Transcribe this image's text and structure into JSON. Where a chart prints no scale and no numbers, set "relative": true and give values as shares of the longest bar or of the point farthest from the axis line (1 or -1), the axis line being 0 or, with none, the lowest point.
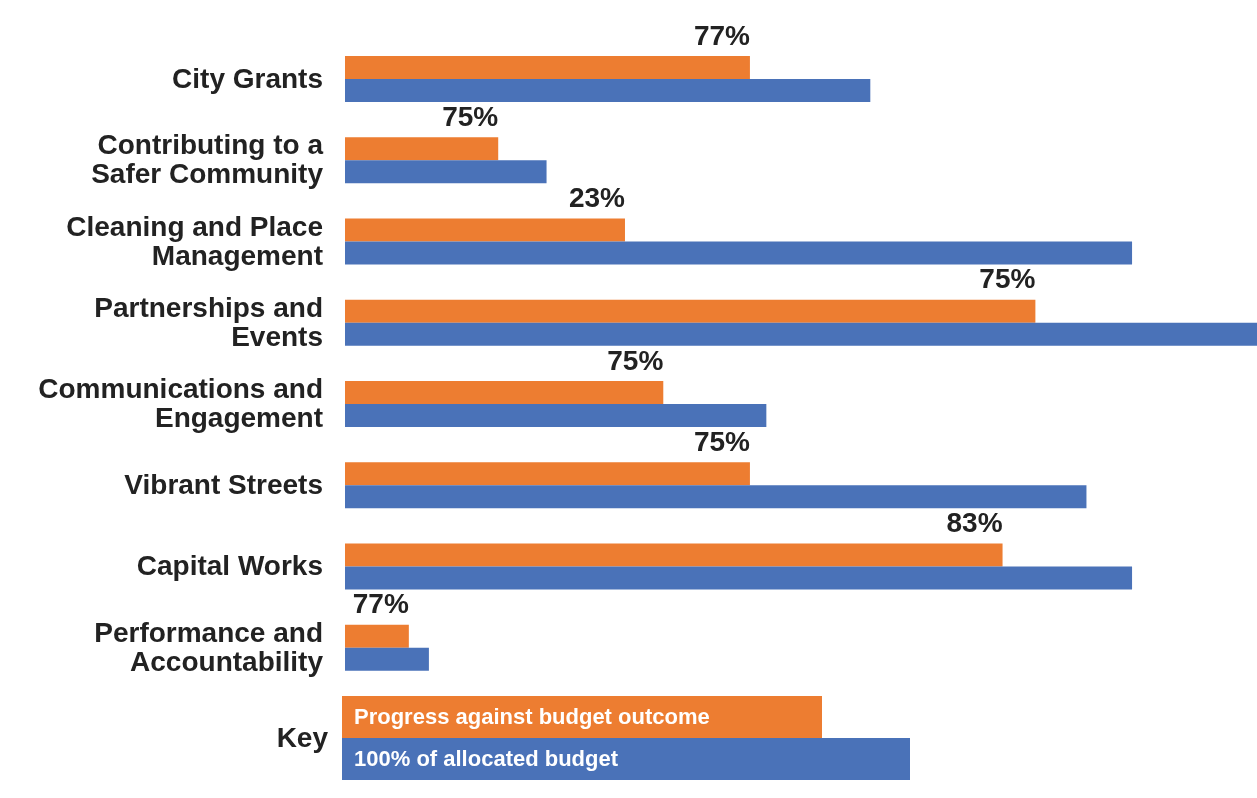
{
  "chart_data": {
    "type": "bar",
    "orientation": "horizontal",
    "relative": true,
    "legend": "bottom",
    "legend_title": "Key",
    "categories": [
      "City Grants",
      "Contributing to a Safer Community",
      "Cleaning and Place Management",
      "Partnerships and Events",
      "Communications and Engagement",
      "Vibrant Streets",
      "Capital Works",
      "Performance and Accountability"
    ],
    "series": [
      {
        "name": "Progress against budget outcome",
        "color": "#ed7d31",
        "values": [
          0.444,
          0.168,
          0.307,
          0.757,
          0.349,
          0.444,
          0.721,
          0.07
        ]
      },
      {
        "name": "100% of allocated budget",
        "color": "#4a72b8",
        "values": [
          0.576,
          0.221,
          0.863,
          1,
          0.462,
          0.813,
          0.863,
          0.092
        ]
      }
    ],
    "annotations": [
      {
        "text": "77%",
        "x": 0.444,
        "y": "City Grants"
      },
      {
        "text": "75%",
        "x": 0.168,
        "y": "Contributing to a Safer Community"
      },
      {
        "text": "23%",
        "x": 0.307,
        "y": "Cleaning and Place Management"
      },
      {
        "text": "75%",
        "x": 0.757,
        "y": "Partnerships and Events"
      },
      {
        "text": "75%",
        "x": 0.349,
        "y": "Communications and Engagement"
      },
      {
        "text": "75%",
        "x": 0.444,
        "y": "Vibrant Streets"
      },
      {
        "text": "83%",
        "x": 0.721,
        "y": "Capital Works"
      },
      {
        "text": "77%",
        "x": 0.07,
        "y": "Performance and Accountability"
      }
    ]
  }
}
